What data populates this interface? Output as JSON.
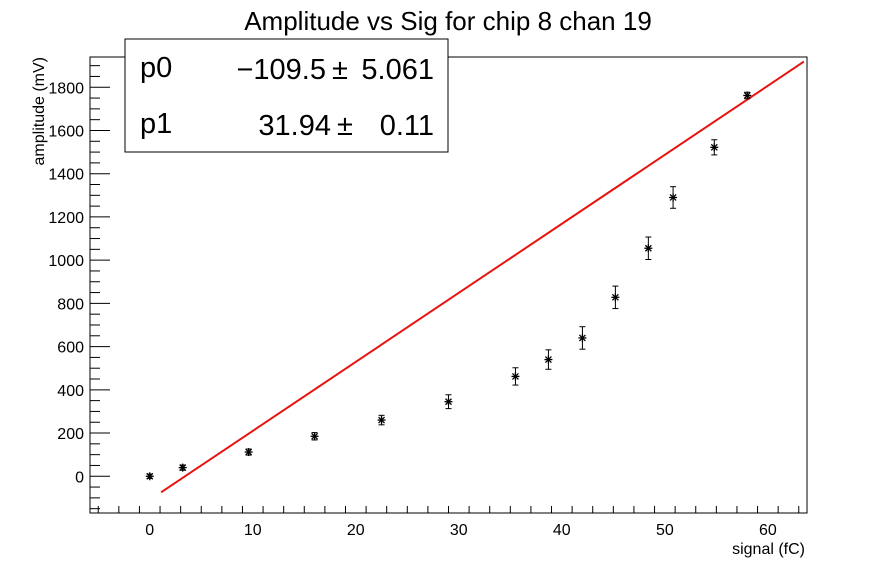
{
  "chart_data": {
    "type": "scatter",
    "title": "Amplitude vs Sig for chip 8 chan 19",
    "xlabel": "signal (fC)",
    "ylabel": "amplitude (mV)",
    "xlim": [
      -5.8,
      63.8
    ],
    "ylim": [
      -170,
      1940
    ],
    "x_ticks": [
      0,
      10,
      20,
      30,
      40,
      50,
      60
    ],
    "y_ticks": [
      0,
      200,
      400,
      600,
      800,
      1000,
      1200,
      1400,
      1600,
      1800
    ],
    "grid": false,
    "marker_color": "#000000",
    "fit_color": "#e8130f",
    "series": [
      {
        "marker": "asterisk",
        "points": [
          {
            "x": 0.0,
            "y": 0,
            "err": 10
          },
          {
            "x": 3.2,
            "y": 40,
            "err": 12
          },
          {
            "x": 9.6,
            "y": 112,
            "err": 14
          },
          {
            "x": 16.0,
            "y": 185,
            "err": 17
          },
          {
            "x": 22.5,
            "y": 260,
            "err": 22
          },
          {
            "x": 29.0,
            "y": 345,
            "err": 32
          },
          {
            "x": 35.5,
            "y": 462,
            "err": 40
          },
          {
            "x": 38.7,
            "y": 540,
            "err": 45
          },
          {
            "x": 42.0,
            "y": 640,
            "err": 52
          },
          {
            "x": 45.2,
            "y": 828,
            "err": 52
          },
          {
            "x": 48.4,
            "y": 1055,
            "err": 52
          },
          {
            "x": 50.8,
            "y": 1290,
            "err": 50
          },
          {
            "x": 54.8,
            "y": 1522,
            "err": 35
          },
          {
            "x": 58.0,
            "y": 1762,
            "err": 15
          }
        ]
      }
    ],
    "fit": {
      "function": "linear",
      "x_range": [
        1.1,
        63.5
      ],
      "p0": -109.5,
      "p1": 31.94
    },
    "stats_box": {
      "rows": [
        {
          "name": "p0",
          "value": "−109.5",
          "pm": "±",
          "error": "5.061"
        },
        {
          "name": "p1",
          "value": "31.94",
          "pm": "±",
          "error": "0.11"
        }
      ]
    }
  }
}
